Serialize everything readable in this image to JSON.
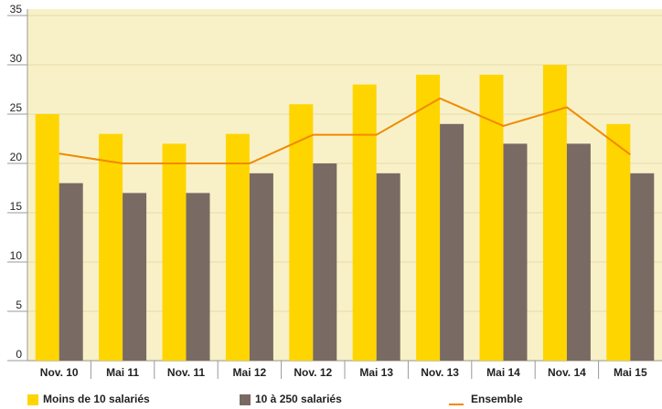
{
  "chart_data": {
    "type": "bar",
    "categories": [
      "Nov. 10",
      "Mai 11",
      "Nov. 11",
      "Mai 12",
      "Nov. 12",
      "Mai 13",
      "Nov. 13",
      "Mai 14",
      "Nov. 14",
      "Mai 15"
    ],
    "series": [
      {
        "name": "Moins de 10 salariés",
        "color": "#ffd500",
        "type": "bar",
        "values": [
          25,
          23,
          22,
          23,
          26,
          28,
          29,
          29,
          30,
          24
        ]
      },
      {
        "name": "10 à 250 salariés",
        "color": "#7a6a64",
        "type": "bar",
        "values": [
          18,
          17,
          17,
          19,
          20,
          19,
          24,
          22,
          22,
          19
        ]
      },
      {
        "name": "Ensemble",
        "color": "#f08a00",
        "type": "line",
        "values": [
          21,
          20,
          20,
          20,
          22.9,
          22.9,
          26.6,
          23.8,
          25.7,
          20.9
        ]
      }
    ],
    "ylim": [
      0,
      35
    ],
    "yticks": [
      0,
      5,
      10,
      15,
      20,
      25,
      30,
      35
    ],
    "grid": true
  }
}
